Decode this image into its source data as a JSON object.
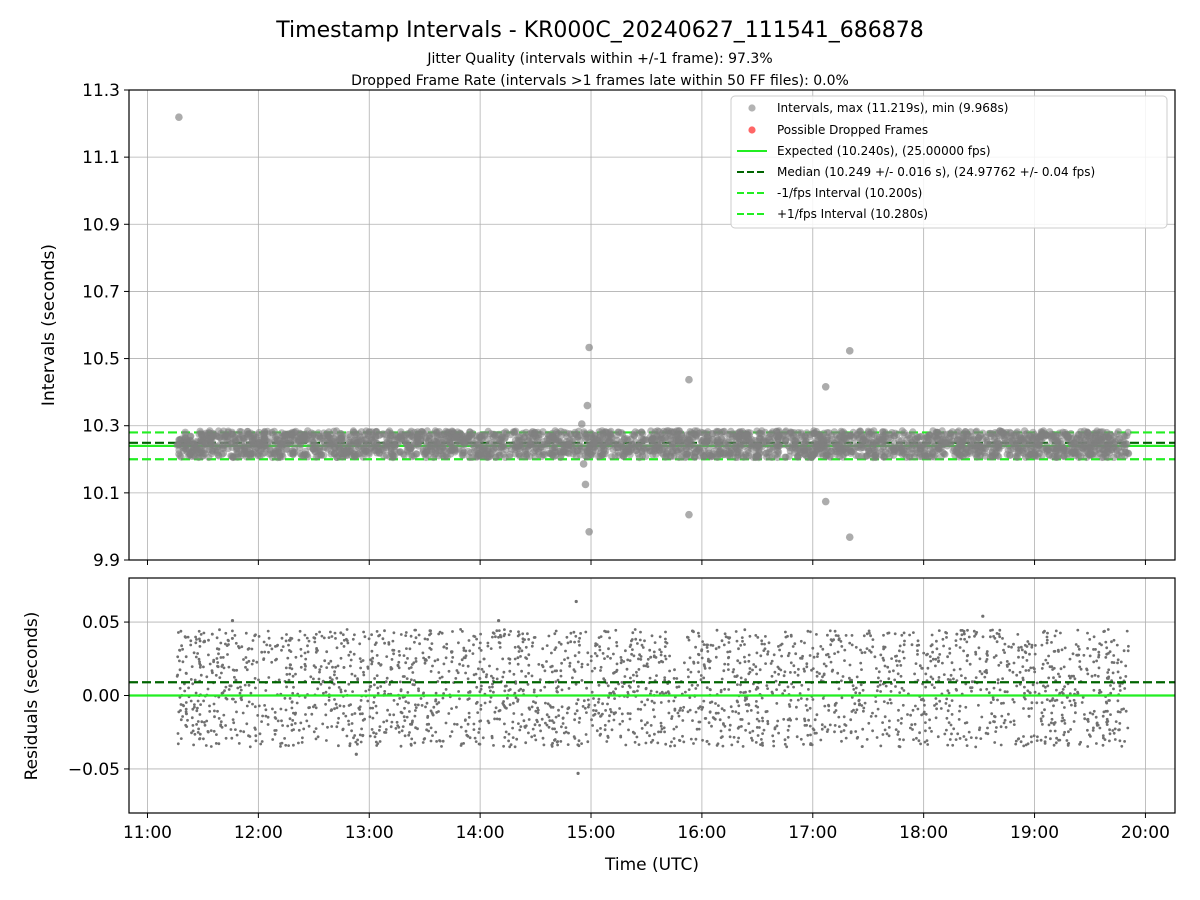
{
  "chart_data": {
    "type": "scatter",
    "title": "Timestamp Intervals - KR000C_20240627_111541_686878",
    "subtitles": [
      "Jitter Quality (intervals within +/-1 frame): 97.3%",
      "Dropped Frame Rate (intervals >1 frames late within 50 FF files): 0.0%"
    ],
    "xlabel": "Time (UTC)",
    "x_ticks": [
      "11:00",
      "12:00",
      "13:00",
      "14:00",
      "15:00",
      "16:00",
      "17:00",
      "18:00",
      "19:00",
      "20:00"
    ],
    "x_range": [
      "10:50",
      "20:16"
    ],
    "grid": true,
    "top_panel": {
      "ylabel": "Intervals (seconds)",
      "ylim": [
        9.9,
        11.3
      ],
      "y_ticks": [
        "9.9",
        "10.1",
        "10.3",
        "10.5",
        "10.7",
        "10.9",
        "11.1",
        "11.3"
      ],
      "legend_position": "top-right",
      "legend": [
        "Intervals, max (11.219s), min (9.968s)",
        "Possible Dropped Frames",
        "Expected (10.240s), (25.00000 fps)",
        "Median (10.249 +/- 0.016 s), (24.97762 +/- 0.04 fps)",
        "-1/fps Interval (10.200s)",
        "+1/fps Interval (10.280s)"
      ],
      "lines": [
        {
          "name": "Expected",
          "y": 10.24,
          "color": "#22ee22",
          "style": "solid"
        },
        {
          "name": "Median",
          "y": 10.249,
          "color": "#006400",
          "style": "dashed"
        },
        {
          "name": "-1/fps Interval",
          "y": 10.2,
          "color": "#22ee22",
          "style": "dashed"
        },
        {
          "name": "+1/fps Interval",
          "y": 10.28,
          "color": "#22ee22",
          "style": "dashed"
        }
      ],
      "point_band": {
        "x_start": "11:16",
        "x_end": "19:51",
        "y_min": 10.205,
        "y_max": 10.285,
        "count": 2600
      },
      "outliers": [
        {
          "x": "11:17",
          "y": 11.219
        },
        {
          "x": "14:55",
          "y": 10.305
        },
        {
          "x": "14:56",
          "y": 10.186
        },
        {
          "x": "14:57",
          "y": 10.125
        },
        {
          "x": "14:58",
          "y": 10.36
        },
        {
          "x": "14:59",
          "y": 10.533
        },
        {
          "x": "14:59",
          "y": 9.984
        },
        {
          "x": "15:53",
          "y": 10.437
        },
        {
          "x": "15:53",
          "y": 10.035
        },
        {
          "x": "17:07",
          "y": 10.416
        },
        {
          "x": "17:07",
          "y": 10.074
        },
        {
          "x": "17:20",
          "y": 10.523
        },
        {
          "x": "17:20",
          "y": 9.968
        }
      ],
      "colors": {
        "points": "#808080",
        "dropped": "#ff0000",
        "expected": "#22ee22",
        "median": "#006400"
      }
    },
    "bottom_panel": {
      "ylabel": "Residuals (seconds)",
      "ylim": [
        -0.08,
        0.08
      ],
      "y_ticks": [
        {
          "value": -0.05,
          "label": "−0.05"
        },
        {
          "value": 0.0,
          "label": "0.00"
        },
        {
          "value": 0.05,
          "label": "0.05"
        }
      ],
      "lines": [
        {
          "name": "Expected",
          "y": 0.0,
          "color": "#22ee22",
          "style": "solid"
        },
        {
          "name": "Median",
          "y": 0.009,
          "color": "#006400",
          "style": "dashed"
        }
      ],
      "point_band": {
        "x_start": "11:16",
        "x_end": "19:51",
        "y_min": -0.035,
        "y_max": 0.045,
        "count": 2600
      },
      "outliers": [
        {
          "x": "14:52",
          "y": 0.064
        },
        {
          "x": "14:53",
          "y": -0.053
        },
        {
          "x": "18:32",
          "y": 0.054
        },
        {
          "x": "11:46",
          "y": 0.051
        },
        {
          "x": "14:10",
          "y": 0.051
        },
        {
          "x": "12:53",
          "y": -0.04
        }
      ],
      "colors": {
        "points": "#707070"
      }
    }
  }
}
